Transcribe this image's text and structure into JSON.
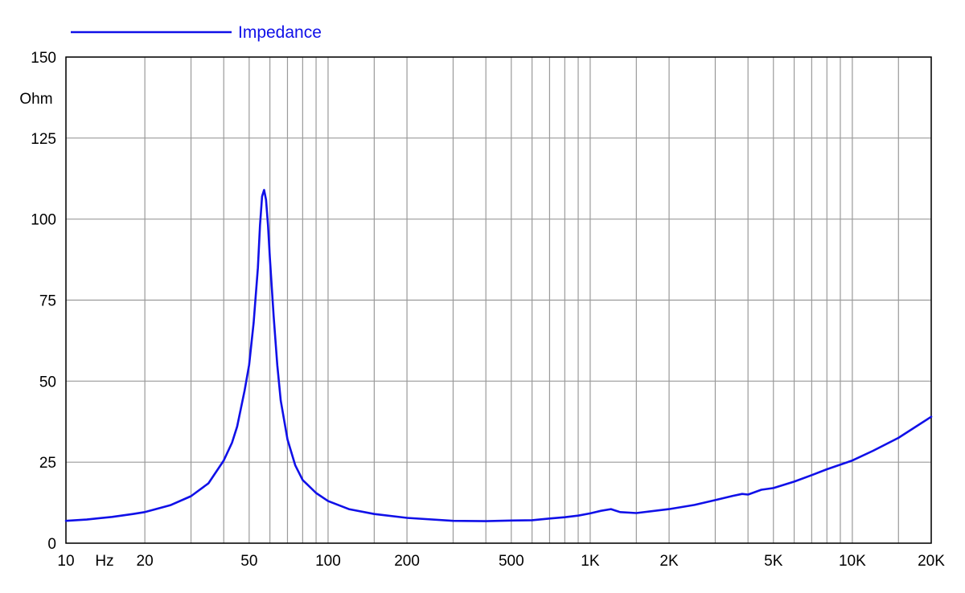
{
  "chart_data": {
    "type": "line",
    "title": "",
    "xlabel": "Hz",
    "ylabel": "Ohm",
    "x_scale": "log",
    "xlim": [
      10,
      20000
    ],
    "ylim": [
      0,
      150
    ],
    "grid": true,
    "legend_placement": "top-left",
    "y_ticks": [
      0,
      25,
      50,
      75,
      100,
      125,
      150
    ],
    "x_tick_labels": [
      {
        "value": 10,
        "label": "10"
      },
      {
        "value": 20,
        "label": "20"
      },
      {
        "value": 50,
        "label": "50"
      },
      {
        "value": 100,
        "label": "100"
      },
      {
        "value": 200,
        "label": "200"
      },
      {
        "value": 500,
        "label": "500"
      },
      {
        "value": 1000,
        "label": "1K"
      },
      {
        "value": 2000,
        "label": "2K"
      },
      {
        "value": 5000,
        "label": "5K"
      },
      {
        "value": 10000,
        "label": "10K"
      },
      {
        "value": 20000,
        "label": "20K"
      }
    ],
    "x_grid": [
      10,
      20,
      30,
      40,
      50,
      60,
      70,
      80,
      90,
      100,
      150,
      200,
      300,
      400,
      500,
      600,
      700,
      800,
      900,
      1000,
      1500,
      2000,
      3000,
      4000,
      5000,
      6000,
      7000,
      8000,
      9000,
      10000,
      15000,
      20000
    ],
    "series": [
      {
        "name": "Impedance",
        "color": "#1010e8",
        "points": [
          [
            10,
            6.9
          ],
          [
            12,
            7.3
          ],
          [
            15,
            8.1
          ],
          [
            18,
            9.0
          ],
          [
            20,
            9.6
          ],
          [
            25,
            11.7
          ],
          [
            30,
            14.5
          ],
          [
            35,
            18.5
          ],
          [
            40,
            25.5
          ],
          [
            43,
            31
          ],
          [
            45,
            36
          ],
          [
            48,
            47
          ],
          [
            50,
            55
          ],
          [
            52,
            68
          ],
          [
            54,
            85
          ],
          [
            55,
            98
          ],
          [
            56,
            107
          ],
          [
            57,
            109
          ],
          [
            58,
            106
          ],
          [
            59,
            98
          ],
          [
            60,
            88
          ],
          [
            62,
            70
          ],
          [
            64,
            55
          ],
          [
            66,
            44
          ],
          [
            70,
            32
          ],
          [
            75,
            24
          ],
          [
            80,
            19.5
          ],
          [
            90,
            15.5
          ],
          [
            100,
            13.0
          ],
          [
            120,
            10.5
          ],
          [
            150,
            9.0
          ],
          [
            200,
            7.8
          ],
          [
            300,
            6.9
          ],
          [
            400,
            6.8
          ],
          [
            500,
            7.0
          ],
          [
            600,
            7.1
          ],
          [
            700,
            7.6
          ],
          [
            800,
            8.0
          ],
          [
            900,
            8.5
          ],
          [
            1000,
            9.2
          ],
          [
            1100,
            10.0
          ],
          [
            1200,
            10.5
          ],
          [
            1300,
            9.6
          ],
          [
            1500,
            9.3
          ],
          [
            2000,
            10.5
          ],
          [
            2500,
            11.8
          ],
          [
            3000,
            13.3
          ],
          [
            3500,
            14.6
          ],
          [
            3800,
            15.2
          ],
          [
            4000,
            15.0
          ],
          [
            4500,
            16.5
          ],
          [
            5000,
            17.0
          ],
          [
            6000,
            19.0
          ],
          [
            7000,
            21.0
          ],
          [
            8000,
            22.8
          ],
          [
            10000,
            25.5
          ],
          [
            12000,
            28.5
          ],
          [
            15000,
            32.5
          ],
          [
            20000,
            39.0
          ]
        ]
      }
    ]
  }
}
